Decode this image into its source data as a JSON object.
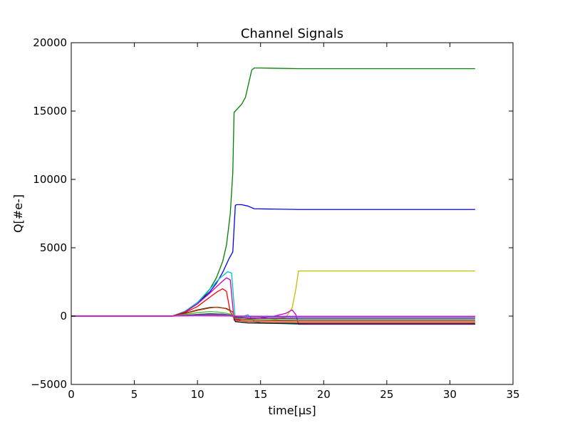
{
  "chart_data": {
    "type": "line",
    "title": "Channel Signals",
    "xlabel": "time[μs]",
    "ylabel": "Q[#e-]",
    "xlim": [
      0,
      35
    ],
    "ylim": [
      -5000,
      20000
    ],
    "xticks": [
      0,
      5,
      10,
      15,
      20,
      25,
      30,
      35
    ],
    "yticks": [
      -5000,
      0,
      5000,
      10000,
      15000,
      20000
    ],
    "xtick_labels": [
      "0",
      "5",
      "10",
      "15",
      "20",
      "25",
      "30",
      "35"
    ],
    "ytick_labels": [
      "−5000",
      "0",
      "5000",
      "10000",
      "15000",
      "20000"
    ],
    "grid": false,
    "legend": false,
    "series": [
      {
        "color": "#008000",
        "x": [
          0,
          8,
          9,
          10,
          10.5,
          11,
          11.5,
          12,
          12.3,
          12.6,
          12.8,
          12.9,
          13.0,
          13.5,
          13.8,
          14.0,
          14.3,
          14.5,
          15,
          18,
          32
        ],
        "y": [
          0,
          0,
          300,
          900,
          1400,
          2000,
          2800,
          4000,
          5200,
          7500,
          10500,
          14900,
          15000,
          15500,
          16000,
          16800,
          18000,
          18150,
          18150,
          18100,
          18100
        ]
      },
      {
        "color": "#0000ff",
        "x": [
          0,
          8,
          9,
          10,
          11,
          11.5,
          12,
          12.5,
          12.8,
          13.0,
          13.1,
          13.5,
          14.0,
          14.5,
          18,
          32
        ],
        "y": [
          0,
          0,
          300,
          900,
          1800,
          2400,
          3200,
          4200,
          4700,
          8100,
          8150,
          8150,
          8050,
          7850,
          7800,
          7800
        ]
      },
      {
        "color": "#bfbf00",
        "x": [
          0,
          8,
          9,
          10,
          11,
          12,
          12.5,
          13.0,
          13.5,
          15,
          16,
          17,
          17.5,
          17.8,
          18,
          32
        ],
        "y": [
          0,
          0,
          50,
          120,
          180,
          130,
          60,
          -150,
          -250,
          -300,
          -250,
          -100,
          600,
          2000,
          3300,
          3300
        ]
      },
      {
        "color": "#00bfbf",
        "x": [
          0,
          8,
          9,
          10,
          11,
          11.8,
          12.4,
          12.7,
          13.0,
          13.5,
          14.0,
          14.5,
          15,
          18,
          32
        ],
        "y": [
          0,
          0,
          350,
          1000,
          2000,
          2800,
          3250,
          3150,
          -300,
          -50,
          100,
          -400,
          -500,
          -600,
          -600
        ]
      },
      {
        "color": "#bf00bf",
        "x": [
          0,
          8,
          9,
          10,
          11,
          11.8,
          12.3,
          12.6,
          12.9,
          13.5,
          15,
          16,
          17,
          17.5,
          17.8,
          18,
          32
        ],
        "y": [
          0,
          0,
          300,
          900,
          1700,
          2400,
          2800,
          2650,
          -300,
          -250,
          -150,
          -20,
          200,
          450,
          100,
          -600,
          -600
        ]
      },
      {
        "color": "#ff0000",
        "x": [
          0,
          8,
          9,
          10,
          11,
          11.6,
          12.0,
          12.3,
          12.6,
          13.0,
          14,
          18,
          32
        ],
        "y": [
          0,
          0,
          250,
          700,
          1400,
          1800,
          2000,
          1800,
          300,
          -200,
          -300,
          -350,
          -350
        ]
      },
      {
        "color": "#000000",
        "x": [
          0,
          8,
          9,
          10,
          11,
          11.6,
          12.3,
          12.8,
          13.0,
          14,
          18,
          32
        ],
        "y": [
          0,
          0,
          200,
          450,
          630,
          650,
          550,
          300,
          -400,
          -500,
          -550,
          -550
        ]
      },
      {
        "color": "#bf3f00",
        "x": [
          0,
          8,
          9,
          10,
          11,
          11.5,
          12.2,
          12.8,
          13.0,
          14,
          18,
          32
        ],
        "y": [
          0,
          0,
          180,
          420,
          600,
          650,
          560,
          300,
          -300,
          -400,
          -450,
          -450
        ]
      },
      {
        "color": "#3fbf3f",
        "x": [
          0,
          8,
          9,
          10,
          11,
          11.6,
          12.3,
          12.8,
          13.0,
          14,
          18,
          32
        ],
        "y": [
          0,
          0,
          120,
          250,
          330,
          300,
          200,
          100,
          -150,
          -250,
          -300,
          -300
        ]
      },
      {
        "color": "#7f007f",
        "x": [
          0,
          8,
          9,
          10,
          11,
          12,
          12.8,
          13.0,
          14,
          18,
          32
        ],
        "y": [
          0,
          0,
          50,
          120,
          170,
          140,
          50,
          -80,
          -150,
          -200,
          -200
        ]
      },
      {
        "color": "#007f7f",
        "x": [
          0,
          8,
          9,
          10,
          11,
          12,
          12.8,
          13.0,
          14,
          18,
          32
        ],
        "y": [
          0,
          0,
          30,
          80,
          120,
          100,
          40,
          -20,
          -50,
          -100,
          -100
        ]
      },
      {
        "color": "#7f7f7f",
        "x": [
          0,
          8,
          9,
          10,
          11,
          12,
          12.8,
          13.0,
          14,
          18,
          32
        ],
        "y": [
          0,
          0,
          20,
          40,
          60,
          50,
          20,
          10,
          0,
          -20,
          -20
        ]
      },
      {
        "color": "#ff00ff",
        "x": [
          0,
          8,
          10,
          12,
          13,
          14,
          18,
          32
        ],
        "y": [
          0,
          0,
          20,
          10,
          0,
          -10,
          -15,
          -15
        ]
      }
    ]
  }
}
